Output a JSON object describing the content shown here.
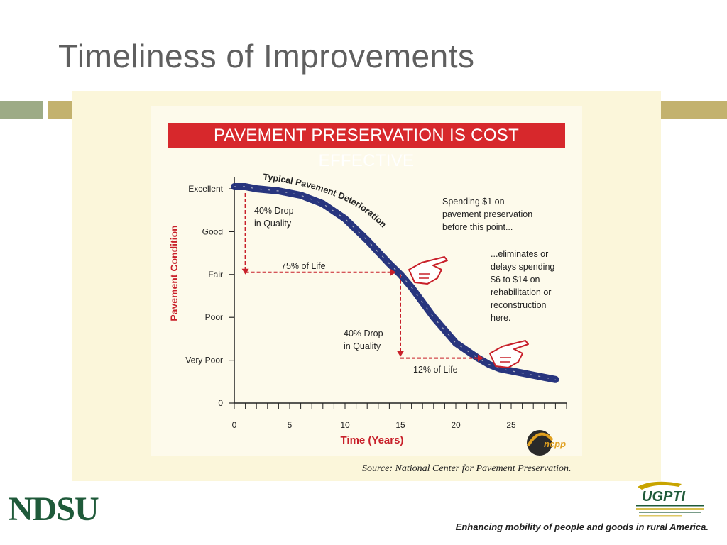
{
  "slide": {
    "title": "Timeliness of Improvements",
    "footer_tagline": "Enhancing mobility of people and goods in rural America.",
    "left_logo_text": "NDSU",
    "right_logo_text": "UGPTI",
    "source": "Source: National Center for Pavement Preservation.",
    "colors": {
      "title": "#5f5f5f",
      "accent_bar": "#c3b26e",
      "accent_bar_left": "#9dab86",
      "panel": "#fbf6da",
      "banner": "#d7282c",
      "curve": "#1c2a78",
      "annotation_red": "#c8202a",
      "ndsu_green": "#1f5a3a"
    }
  },
  "chart_data": {
    "type": "line",
    "title": "PAVEMENT PRESERVATION IS COST EFFECTIVE",
    "xlabel": "Time (Years)",
    "ylabel": "Pavement Condition",
    "xlim": [
      0,
      30
    ],
    "ylim": [
      0,
      5
    ],
    "x_ticks": [
      0,
      5,
      10,
      15,
      20,
      25
    ],
    "y_ticks": [
      {
        "value": 0,
        "label": "0"
      },
      {
        "value": 1,
        "label": "Very Poor"
      },
      {
        "value": 2,
        "label": "Poor"
      },
      {
        "value": 3,
        "label": "Fair"
      },
      {
        "value": 4,
        "label": "Good"
      },
      {
        "value": 5,
        "label": "Excellent"
      }
    ],
    "series": [
      {
        "name": "Typical Pavement Deterioration",
        "x": [
          0,
          1,
          2,
          4,
          6,
          8,
          10,
          12,
          14,
          15,
          16,
          18,
          20,
          22,
          23,
          24,
          26,
          28,
          29
        ],
        "y": [
          5.05,
          5.05,
          5.0,
          4.95,
          4.85,
          4.65,
          4.3,
          3.8,
          3.25,
          3.0,
          2.7,
          2.0,
          1.4,
          1.05,
          0.9,
          0.8,
          0.7,
          0.6,
          0.55
        ]
      }
    ],
    "annotations": [
      {
        "text": "40% Drop in Quality",
        "lines": [
          "40% Drop",
          "in Quality"
        ],
        "x": 1,
        "y": 4.6
      },
      {
        "text": "75% of Life",
        "x": 6.5,
        "y": 3.2
      },
      {
        "text": "40% Drop in Quality",
        "lines": [
          "40% Drop",
          "in Quality"
        ],
        "x": 10,
        "y": 1.5
      },
      {
        "text": "12% of Life",
        "x": 16,
        "y": 0.8
      },
      {
        "text": "Spending $1 on pavement preservation before this point...",
        "lines": [
          "Spending $1 on",
          "pavement preservation",
          "before this point..."
        ]
      },
      {
        "text": "...eliminates or delays spending $6 to $14 on rehabilitation or reconstruction here.",
        "lines": [
          "...eliminates or",
          "delays spending",
          "$6 to $14 on",
          "rehabilitation or",
          "reconstruction",
          "here."
        ]
      }
    ],
    "logo_text": "ncpp"
  }
}
